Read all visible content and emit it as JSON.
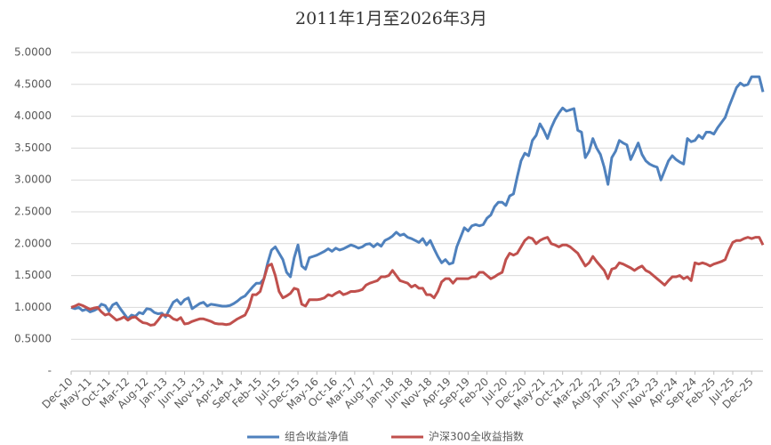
{
  "chart_data": {
    "type": "line",
    "title": "2011年1月至2026年3月",
    "categories": [
      "Dec-10",
      null,
      null,
      null,
      null,
      "May-11",
      null,
      null,
      null,
      null,
      "Oct-11",
      null,
      null,
      null,
      null,
      "Mar-12",
      null,
      null,
      null,
      null,
      "Aug-12",
      null,
      null,
      null,
      null,
      "Jan-13",
      null,
      null,
      null,
      null,
      "Jun-13",
      null,
      null,
      null,
      null,
      "Nov-13",
      null,
      null,
      null,
      null,
      "Apr-14",
      null,
      null,
      null,
      null,
      "Sep-14",
      null,
      null,
      null,
      null,
      "Feb-15",
      null,
      null,
      null,
      null,
      "Jul-15",
      null,
      null,
      null,
      null,
      "Dec-15",
      null,
      null,
      null,
      null,
      "May-16",
      null,
      null,
      null,
      null,
      "Oct-16",
      null,
      null,
      null,
      null,
      "Mar-17",
      null,
      null,
      null,
      null,
      "Aug-17",
      null,
      null,
      null,
      null,
      "Jan-18",
      null,
      null,
      null,
      null,
      "Jun-18",
      null,
      null,
      null,
      null,
      "Nov-18",
      null,
      null,
      null,
      null,
      "Apr-19",
      null,
      null,
      null,
      null,
      "Sep-19",
      null,
      null,
      null,
      null,
      "Feb-20",
      null,
      null,
      null,
      null,
      "Jul-20",
      null,
      null,
      null,
      null,
      "Dec-20",
      null,
      null,
      null,
      null,
      "May-21",
      null,
      null,
      null,
      null,
      "Oct-21",
      null,
      null,
      null,
      null,
      "Mar-22",
      null,
      null,
      null,
      null,
      "Aug-22",
      null,
      null,
      null,
      null,
      "Jan-23",
      null,
      null,
      null,
      null,
      "Jun-23",
      null,
      null,
      null,
      null,
      "Nov-23",
      null,
      null,
      null,
      null,
      "Apr-24",
      null,
      null,
      null,
      null,
      "Sep-24",
      null,
      null,
      null,
      null,
      "Feb-25",
      null,
      null,
      null,
      null,
      "Jul-25",
      null,
      null,
      null,
      null,
      "Dec-25",
      null,
      null,
      null
    ],
    "series": [
      {
        "name": "组合收益净值",
        "color": "#4f81bd",
        "values": [
          1.0,
          0.98,
          1.0,
          0.95,
          0.97,
          0.93,
          0.95,
          0.98,
          1.05,
          1.03,
          0.94,
          1.04,
          1.07,
          0.98,
          0.9,
          0.82,
          0.88,
          0.86,
          0.92,
          0.9,
          0.98,
          0.97,
          0.92,
          0.9,
          0.91,
          0.85,
          0.97,
          1.08,
          1.12,
          1.05,
          1.12,
          1.15,
          0.98,
          1.02,
          1.06,
          1.08,
          1.02,
          1.05,
          1.04,
          1.03,
          1.02,
          1.02,
          1.03,
          1.06,
          1.1,
          1.15,
          1.18,
          1.25,
          1.32,
          1.38,
          1.38,
          1.45,
          1.7,
          1.9,
          1.95,
          1.85,
          1.75,
          1.55,
          1.48,
          1.78,
          1.98,
          1.65,
          1.6,
          1.78,
          1.8,
          1.82,
          1.85,
          1.88,
          1.92,
          1.88,
          1.93,
          1.9,
          1.92,
          1.95,
          1.98,
          1.96,
          1.93,
          1.95,
          1.99,
          2.0,
          1.95,
          2.0,
          1.96,
          2.05,
          2.08,
          2.12,
          2.18,
          2.13,
          2.15,
          2.1,
          2.08,
          2.05,
          2.02,
          2.08,
          1.98,
          2.05,
          1.92,
          1.8,
          1.7,
          1.75,
          1.68,
          1.7,
          1.95,
          2.1,
          2.25,
          2.2,
          2.28,
          2.3,
          2.28,
          2.3,
          2.4,
          2.45,
          2.58,
          2.65,
          2.65,
          2.6,
          2.75,
          2.78,
          3.05,
          3.3,
          3.42,
          3.38,
          3.62,
          3.7,
          3.88,
          3.78,
          3.65,
          3.82,
          3.95,
          4.05,
          4.13,
          4.08,
          4.1,
          4.12,
          3.78,
          3.75,
          3.35,
          3.45,
          3.65,
          3.5,
          3.4,
          3.2,
          2.93,
          3.35,
          3.45,
          3.62,
          3.58,
          3.55,
          3.32,
          3.45,
          3.58,
          3.4,
          3.3,
          3.25,
          3.22,
          3.2,
          3.0,
          3.15,
          3.3,
          3.38,
          3.32,
          3.28,
          3.25,
          3.65,
          3.6,
          3.62,
          3.7,
          3.65,
          3.75,
          3.75,
          3.72,
          3.82,
          3.9,
          3.98,
          4.15,
          4.3,
          4.45,
          4.52,
          4.48,
          4.5,
          4.62,
          4.62,
          4.62,
          4.38
        ]
      },
      {
        "name": "沪深300全收益指数",
        "color": "#c0504d",
        "values": [
          1.0,
          1.02,
          1.05,
          1.03,
          1.0,
          0.97,
          0.99,
          1.0,
          0.93,
          0.88,
          0.9,
          0.85,
          0.8,
          0.82,
          0.85,
          0.8,
          0.84,
          0.85,
          0.8,
          0.76,
          0.75,
          0.72,
          0.73,
          0.8,
          0.88,
          0.88,
          0.87,
          0.82,
          0.8,
          0.84,
          0.74,
          0.75,
          0.78,
          0.8,
          0.82,
          0.82,
          0.8,
          0.78,
          0.75,
          0.74,
          0.74,
          0.73,
          0.74,
          0.78,
          0.82,
          0.85,
          0.88,
          1.0,
          1.2,
          1.2,
          1.25,
          1.45,
          1.65,
          1.68,
          1.5,
          1.25,
          1.15,
          1.18,
          1.22,
          1.3,
          1.28,
          1.05,
          1.02,
          1.12,
          1.12,
          1.12,
          1.13,
          1.15,
          1.2,
          1.18,
          1.22,
          1.25,
          1.2,
          1.22,
          1.25,
          1.25,
          1.26,
          1.28,
          1.35,
          1.38,
          1.4,
          1.42,
          1.48,
          1.48,
          1.5,
          1.58,
          1.5,
          1.42,
          1.4,
          1.38,
          1.32,
          1.35,
          1.3,
          1.3,
          1.2,
          1.2,
          1.15,
          1.25,
          1.4,
          1.45,
          1.45,
          1.38,
          1.45,
          1.45,
          1.45,
          1.45,
          1.48,
          1.48,
          1.55,
          1.55,
          1.5,
          1.45,
          1.48,
          1.52,
          1.55,
          1.75,
          1.85,
          1.82,
          1.85,
          1.95,
          2.05,
          2.1,
          2.08,
          2.0,
          2.05,
          2.08,
          2.1,
          2.0,
          1.98,
          1.95,
          1.98,
          1.98,
          1.95,
          1.9,
          1.85,
          1.75,
          1.65,
          1.7,
          1.8,
          1.72,
          1.65,
          1.58,
          1.45,
          1.6,
          1.62,
          1.7,
          1.68,
          1.65,
          1.62,
          1.58,
          1.62,
          1.65,
          1.58,
          1.55,
          1.5,
          1.45,
          1.4,
          1.35,
          1.42,
          1.48,
          1.48,
          1.5,
          1.45,
          1.48,
          1.42,
          1.7,
          1.68,
          1.7,
          1.68,
          1.65,
          1.68,
          1.7,
          1.72,
          1.75,
          1.9,
          2.02,
          2.05,
          2.05,
          2.08,
          2.1,
          2.08,
          2.1,
          2.1,
          1.98
        ]
      }
    ],
    "ylim": [
      0,
      5
    ],
    "yticks": [
      {
        "value": 0,
        "label": "-"
      },
      {
        "value": 0.5,
        "label": "0.5000"
      },
      {
        "value": 1,
        "label": "1.0000"
      },
      {
        "value": 1.5,
        "label": "1.5000"
      },
      {
        "value": 2,
        "label": "2.0000"
      },
      {
        "value": 2.5,
        "label": "2.5000"
      },
      {
        "value": 3,
        "label": "3.0000"
      },
      {
        "value": 3.5,
        "label": "3.5000"
      },
      {
        "value": 4,
        "label": "4.0000"
      },
      {
        "value": 4.5,
        "label": "4.5000"
      },
      {
        "value": 5,
        "label": "5.0000"
      }
    ],
    "grid": true,
    "legend": "bottom"
  }
}
